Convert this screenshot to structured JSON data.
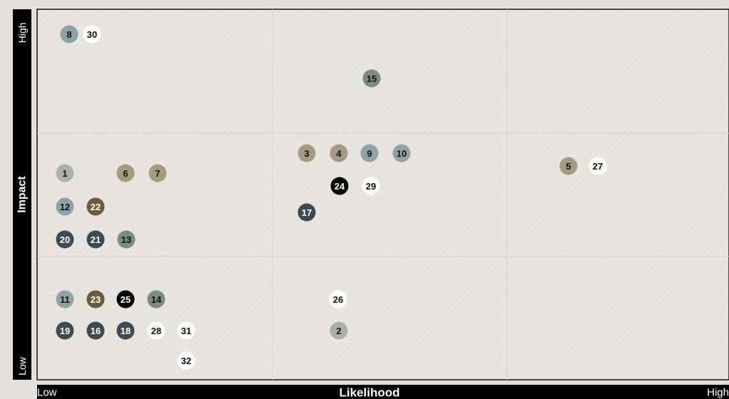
{
  "axes": {
    "y_label": "Impact",
    "y_high": "High",
    "y_low": "Low",
    "x_label": "Likelihood",
    "x_low": "Low",
    "x_high": "High"
  },
  "nodes": [
    {
      "label": "8",
      "color": "#8fa3a6"
    },
    {
      "label": "30",
      "color": "#ffffff"
    },
    {
      "label": "15",
      "color": "#7a8d7e"
    },
    {
      "label": "3",
      "color": "#a69a80"
    },
    {
      "label": "4",
      "color": "#a69a80"
    },
    {
      "label": "9",
      "color": "#8fa3a6"
    },
    {
      "label": "10",
      "color": "#8fa3a6"
    },
    {
      "label": "5",
      "color": "#a69a80"
    },
    {
      "label": "27",
      "color": "#ffffff"
    },
    {
      "label": "1",
      "color": "#a9b3a8"
    },
    {
      "label": "6",
      "color": "#a69a80"
    },
    {
      "label": "7",
      "color": "#a69a80"
    },
    {
      "label": "24",
      "color": "#000000"
    },
    {
      "label": "29",
      "color": "#ffffff"
    },
    {
      "label": "17",
      "color": "#3d4a52"
    },
    {
      "label": "12",
      "color": "#8fa3a6"
    },
    {
      "label": "22",
      "color": "#6e5a3a"
    },
    {
      "label": "20",
      "color": "#3d4a52"
    },
    {
      "label": "21",
      "color": "#3d4a52"
    },
    {
      "label": "13",
      "color": "#7a8d7e"
    },
    {
      "label": "11",
      "color": "#8fa3a6"
    },
    {
      "label": "23",
      "color": "#6e5a3a"
    },
    {
      "label": "25",
      "color": "#000000"
    },
    {
      "label": "14",
      "color": "#7a8d7e"
    },
    {
      "label": "26",
      "color": "#ffffff"
    },
    {
      "label": "19",
      "color": "#3d4a52"
    },
    {
      "label": "16",
      "color": "#3d4a52"
    },
    {
      "label": "18",
      "color": "#3d4a52"
    },
    {
      "label": "28",
      "color": "#ffffff"
    },
    {
      "label": "31",
      "color": "#ffffff"
    },
    {
      "label": "2",
      "color": "#a9b3a8"
    },
    {
      "label": "32",
      "color": "#ffffff"
    }
  ]
}
